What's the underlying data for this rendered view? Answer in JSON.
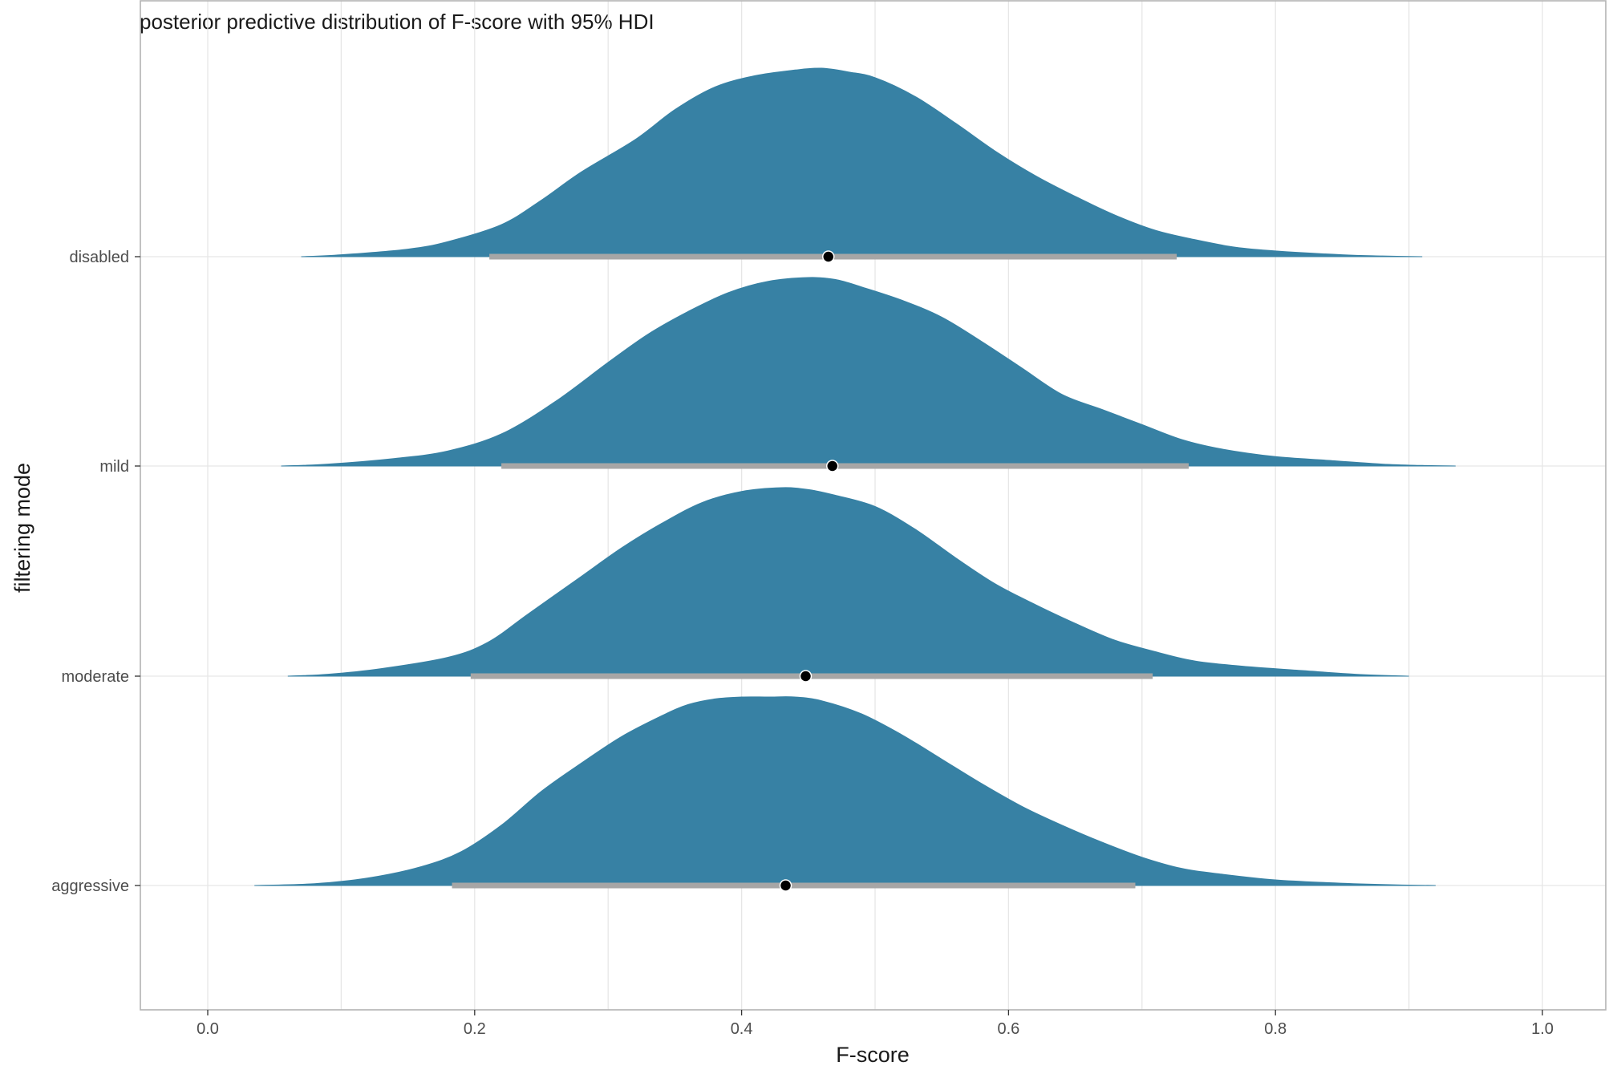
{
  "chart_data": {
    "type": "ridgeline",
    "title": "posterior predictive distribution of F-score with 95% HDI",
    "xlabel": "F-score",
    "ylabel": "filtering mode",
    "xlim": [
      -0.05,
      1.05
    ],
    "x_ticks": [
      0.0,
      0.2,
      0.4,
      0.6,
      0.8,
      1.0
    ],
    "x_tick_labels": [
      "0.0",
      "0.2",
      "0.4",
      "0.6",
      "0.8",
      "1.0"
    ],
    "grid": true,
    "legend": "none",
    "fill_color": "#3781a4",
    "interval_color": "#a6a6a6",
    "point_color": "#000000",
    "series": [
      {
        "name": "disabled",
        "range": [
          0.07,
          0.91
        ],
        "hdi": [
          0.211,
          0.726
        ],
        "point": 0.465,
        "density_x": [
          0.07,
          0.1,
          0.15,
          0.18,
          0.22,
          0.25,
          0.28,
          0.32,
          0.35,
          0.38,
          0.41,
          0.44,
          0.46,
          0.48,
          0.5,
          0.53,
          0.56,
          0.59,
          0.62,
          0.65,
          0.68,
          0.71,
          0.74,
          0.77,
          0.8,
          0.85,
          0.88,
          0.91
        ],
        "density_y": [
          0.0,
          0.01,
          0.04,
          0.08,
          0.17,
          0.3,
          0.45,
          0.62,
          0.78,
          0.9,
          0.96,
          0.99,
          1.0,
          0.98,
          0.95,
          0.85,
          0.71,
          0.56,
          0.43,
          0.32,
          0.22,
          0.14,
          0.09,
          0.05,
          0.03,
          0.01,
          0.004,
          0.0
        ]
      },
      {
        "name": "mild",
        "range": [
          0.055,
          0.935
        ],
        "hdi": [
          0.22,
          0.735
        ],
        "point": 0.468,
        "density_x": [
          0.055,
          0.09,
          0.14,
          0.18,
          0.22,
          0.26,
          0.3,
          0.33,
          0.36,
          0.39,
          0.42,
          0.45,
          0.47,
          0.49,
          0.52,
          0.55,
          0.58,
          0.61,
          0.64,
          0.67,
          0.7,
          0.73,
          0.76,
          0.8,
          0.84,
          0.88,
          0.91,
          0.935
        ],
        "density_y": [
          0.0,
          0.01,
          0.04,
          0.08,
          0.17,
          0.34,
          0.55,
          0.7,
          0.82,
          0.92,
          0.98,
          1.0,
          0.99,
          0.95,
          0.88,
          0.79,
          0.66,
          0.52,
          0.38,
          0.3,
          0.22,
          0.14,
          0.09,
          0.05,
          0.03,
          0.01,
          0.003,
          0.0
        ]
      },
      {
        "name": "moderate",
        "range": [
          0.06,
          0.9
        ],
        "hdi": [
          0.197,
          0.708
        ],
        "point": 0.448,
        "density_x": [
          0.06,
          0.09,
          0.13,
          0.18,
          0.21,
          0.24,
          0.28,
          0.31,
          0.34,
          0.37,
          0.4,
          0.43,
          0.45,
          0.47,
          0.5,
          0.53,
          0.56,
          0.59,
          0.62,
          0.65,
          0.68,
          0.71,
          0.74,
          0.78,
          0.82,
          0.86,
          0.9
        ],
        "density_y": [
          0.0,
          0.01,
          0.04,
          0.1,
          0.18,
          0.33,
          0.53,
          0.68,
          0.81,
          0.92,
          0.98,
          1.0,
          0.99,
          0.96,
          0.9,
          0.78,
          0.63,
          0.49,
          0.38,
          0.28,
          0.19,
          0.13,
          0.08,
          0.05,
          0.03,
          0.01,
          0.0
        ]
      },
      {
        "name": "aggressive",
        "range": [
          0.035,
          0.92
        ],
        "hdi": [
          0.183,
          0.695
        ],
        "point": 0.433,
        "density_x": [
          0.035,
          0.08,
          0.12,
          0.16,
          0.19,
          0.22,
          0.25,
          0.28,
          0.31,
          0.34,
          0.36,
          0.38,
          0.4,
          0.42,
          0.44,
          0.46,
          0.49,
          0.52,
          0.55,
          0.58,
          0.61,
          0.64,
          0.67,
          0.7,
          0.73,
          0.76,
          0.8,
          0.84,
          0.88,
          0.92
        ],
        "density_y": [
          0.0,
          0.01,
          0.04,
          0.1,
          0.18,
          0.32,
          0.5,
          0.65,
          0.79,
          0.9,
          0.96,
          0.99,
          1.0,
          1.0,
          1.0,
          0.98,
          0.91,
          0.8,
          0.67,
          0.54,
          0.42,
          0.32,
          0.23,
          0.15,
          0.09,
          0.06,
          0.03,
          0.015,
          0.005,
          0.0
        ]
      }
    ]
  }
}
